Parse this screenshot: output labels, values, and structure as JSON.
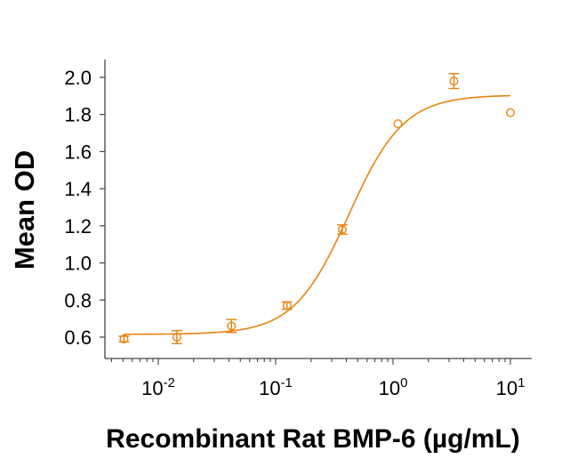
{
  "chart_data": {
    "type": "scatter",
    "title": "",
    "xlabel": "Recombinant Rat BMP-6 (µg/mL)",
    "ylabel": "Mean OD",
    "xscale": "log",
    "xlim": [
      0.0044,
      16
    ],
    "ylim": [
      0.5,
      2.14
    ],
    "yticks": [
      0.6,
      0.8,
      1.0,
      1.2,
      1.4,
      1.6,
      1.8,
      2.0
    ],
    "ytick_labels": [
      "0.6",
      "0.8",
      "1.0",
      "1.2",
      "1.4",
      "1.6",
      "1.8",
      "2.0"
    ],
    "xticks": [
      {
        "value": 0.01,
        "base": "10",
        "exp": "-2"
      },
      {
        "value": 0.1,
        "base": "10",
        "exp": "-1"
      },
      {
        "value": 1,
        "base": "10",
        "exp": "0"
      },
      {
        "value": 10,
        "base": "10",
        "exp": "1"
      }
    ],
    "grid": false,
    "legend": "none",
    "color": "#E8840E",
    "series": [
      {
        "name": "Mean OD",
        "points": [
          {
            "x": 0.0051,
            "y": 0.59,
            "err": 0.015
          },
          {
            "x": 0.0144,
            "y": 0.6,
            "err": 0.035
          },
          {
            "x": 0.042,
            "y": 0.66,
            "err": 0.035
          },
          {
            "x": 0.125,
            "y": 0.77,
            "err": 0.02
          },
          {
            "x": 0.37,
            "y": 1.18,
            "err": 0.025
          },
          {
            "x": 1.1,
            "y": 1.75,
            "err": 0.0
          },
          {
            "x": 3.3,
            "y": 1.98,
            "err": 0.04
          },
          {
            "x": 10.0,
            "y": 1.81,
            "err": 0.0
          }
        ]
      }
    ],
    "fit": {
      "model": "4PL",
      "bottom": 0.615,
      "top": 1.905,
      "ec50": 0.42,
      "hill": 1.85,
      "x_range": [
        0.0051,
        10
      ]
    }
  }
}
